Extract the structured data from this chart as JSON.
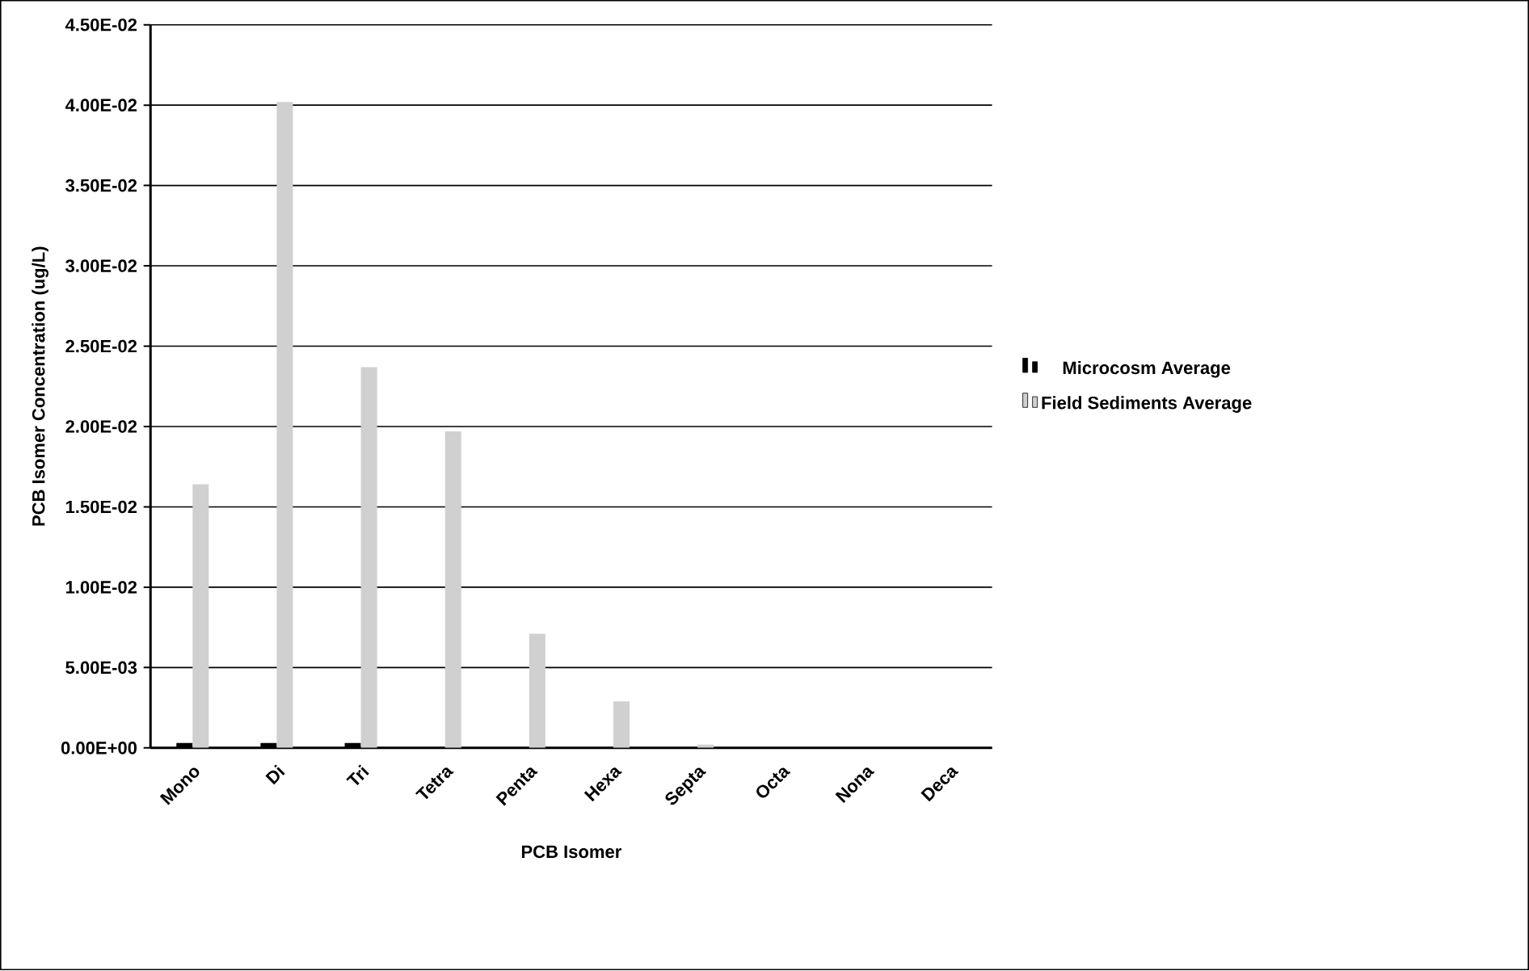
{
  "chart_data": {
    "type": "bar",
    "xlabel": "PCB Isomer",
    "ylabel": "PCB Isomer Concentration (ug/L)",
    "categories": [
      "Mono",
      "Di",
      "Tri",
      "Tetra",
      "Penta",
      "Hexa",
      "Septa",
      "Octa",
      "Nona",
      "Deca"
    ],
    "series": [
      {
        "name": "Microcosm Average",
        "color": "#000000",
        "values": [
          0.0003,
          0.0003,
          0.0003,
          null,
          null,
          null,
          0,
          0,
          0,
          0
        ]
      },
      {
        "name": "Field Sediments Average",
        "color": "#d0d0d0",
        "values": [
          0.0164,
          0.0402,
          0.0237,
          0.0197,
          0.0071,
          0.0029,
          0.0002,
          0,
          0,
          0
        ]
      }
    ],
    "ylim": [
      0,
      0.045
    ],
    "yticks": [
      {
        "value": 0,
        "label": "0.00E+00"
      },
      {
        "value": 0.005,
        "label": "5.00E-03"
      },
      {
        "value": 0.01,
        "label": "1.00E-02"
      },
      {
        "value": 0.015,
        "label": "1.50E-02"
      },
      {
        "value": 0.02,
        "label": "2.00E-02"
      },
      {
        "value": 0.025,
        "label": "2.50E-02"
      },
      {
        "value": 0.03,
        "label": "3.00E-02"
      },
      {
        "value": 0.035,
        "label": "3.50E-02"
      },
      {
        "value": 0.04,
        "label": "4.00E-02"
      },
      {
        "value": 0.045,
        "label": "4.50E-02"
      }
    ],
    "grid": "y",
    "legend": "right"
  }
}
